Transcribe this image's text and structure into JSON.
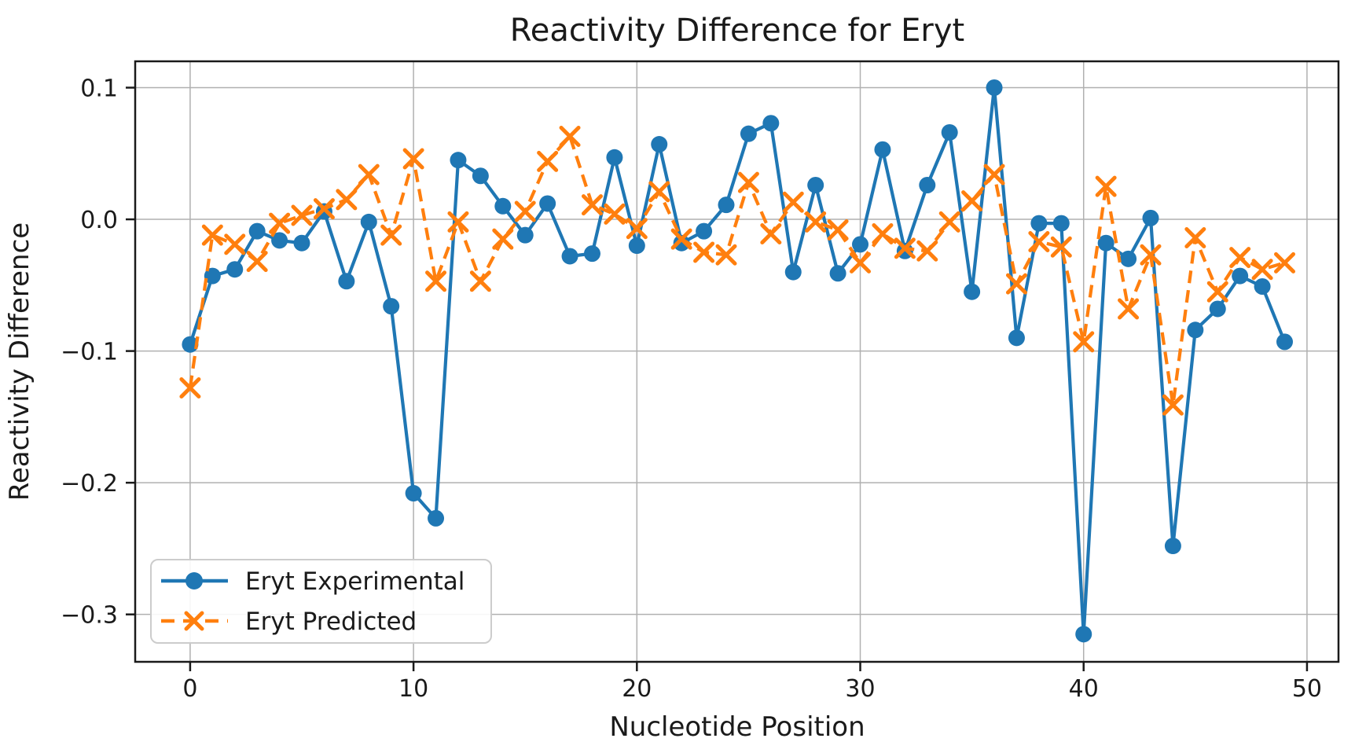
{
  "figure": {
    "background": "#ffffff"
  },
  "chart_data": {
    "type": "line",
    "title": "Reactivity Difference for Eryt",
    "xlabel": "Nucleotide Position",
    "ylabel": "Reactivity Difference",
    "x": [
      0,
      1,
      2,
      3,
      4,
      5,
      6,
      7,
      8,
      9,
      10,
      11,
      12,
      13,
      14,
      15,
      16,
      17,
      18,
      19,
      20,
      21,
      22,
      23,
      24,
      25,
      26,
      27,
      28,
      29,
      30,
      31,
      32,
      33,
      34,
      35,
      36,
      37,
      38,
      39,
      40,
      41,
      42,
      43,
      44,
      45,
      46,
      47,
      48,
      49
    ],
    "series": [
      {
        "name": "Eryt Experimental",
        "color": "#1f77b4",
        "linestyle": "solid",
        "marker": "circle",
        "values": [
          -0.095,
          -0.043,
          -0.038,
          -0.009,
          -0.016,
          -0.018,
          0.006,
          -0.047,
          -0.002,
          -0.066,
          -0.208,
          -0.227,
          0.045,
          0.033,
          0.01,
          -0.012,
          0.012,
          -0.028,
          -0.026,
          0.047,
          -0.02,
          0.057,
          -0.018,
          -0.009,
          0.011,
          0.065,
          0.073,
          -0.04,
          0.026,
          -0.041,
          -0.019,
          0.053,
          -0.024,
          0.026,
          0.066,
          -0.055,
          0.1,
          -0.09,
          -0.003,
          -0.003,
          -0.315,
          -0.018,
          -0.03,
          0.001,
          -0.248,
          -0.084,
          -0.068,
          -0.043,
          -0.051,
          -0.093
        ]
      },
      {
        "name": "Eryt Predicted",
        "color": "#ff7f0e",
        "linestyle": "dashed",
        "marker": "x",
        "values": [
          -0.128,
          -0.012,
          -0.019,
          -0.032,
          -0.003,
          0.003,
          0.008,
          0.015,
          0.034,
          -0.012,
          0.046,
          -0.047,
          -0.002,
          -0.047,
          -0.015,
          0.006,
          0.044,
          0.063,
          0.011,
          0.004,
          -0.007,
          0.021,
          -0.015,
          -0.025,
          -0.027,
          0.028,
          -0.011,
          0.013,
          -0.002,
          -0.008,
          -0.033,
          -0.011,
          -0.022,
          -0.024,
          -0.002,
          0.014,
          0.034,
          -0.049,
          -0.017,
          -0.021,
          -0.093,
          0.025,
          -0.068,
          -0.027,
          -0.141,
          -0.014,
          -0.055,
          -0.029,
          -0.038,
          -0.033
        ]
      }
    ],
    "xlim": [
      -2.46,
      51.41
    ],
    "ylim": [
      -0.336,
      0.12
    ],
    "x_ticks": [
      0,
      10,
      20,
      30,
      40,
      50
    ],
    "x_tick_labels": [
      "0",
      "10",
      "20",
      "30",
      "40",
      "50"
    ],
    "y_ticks": [
      0.1,
      0.0,
      -0.1,
      -0.2,
      -0.3
    ],
    "y_tick_labels": [
      "0.1",
      "0.0",
      "−0.1",
      "−0.2",
      "−0.3"
    ],
    "grid": true,
    "legend": {
      "position": "lower left"
    },
    "styles": {
      "grid_color": "#b0b0b0",
      "spine_color": "#1a1a1a",
      "text_color": "#1a1a1a",
      "legend_border": "#cccccc",
      "legend_bg": "rgba(255,255,255,0.9)"
    }
  }
}
